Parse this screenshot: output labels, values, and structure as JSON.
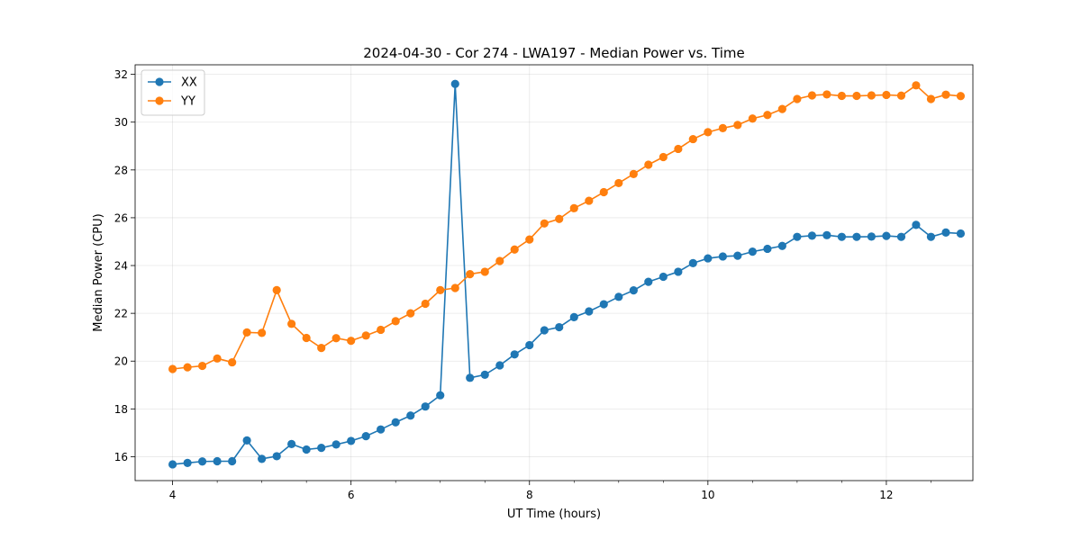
{
  "chart_data": {
    "type": "line",
    "title": "2024-04-30 - Cor 274 - LWA197 - Median Power vs. Time",
    "xlabel": "UT Time (hours)",
    "ylabel": "Median Power (CPU)",
    "xlim": [
      3.58,
      12.97
    ],
    "ylim": [
      15.0,
      32.4
    ],
    "xticks": [
      4,
      6,
      8,
      10,
      12
    ],
    "xtick_labels": [
      "4",
      "6",
      "8",
      "10",
      "12"
    ],
    "xminor_step": 0.5,
    "yticks": [
      16,
      18,
      20,
      22,
      24,
      26,
      28,
      30,
      32
    ],
    "ytick_labels": [
      "16",
      "18",
      "20",
      "22",
      "24",
      "26",
      "28",
      "30",
      "32"
    ],
    "grid": true,
    "legend": "top-left",
    "x": [
      4.0,
      4.167,
      4.333,
      4.5,
      4.667,
      4.833,
      5.0,
      5.167,
      5.333,
      5.5,
      5.667,
      5.833,
      6.0,
      6.167,
      6.333,
      6.5,
      6.667,
      6.833,
      7.0,
      7.167,
      7.333,
      7.5,
      7.667,
      7.833,
      8.0,
      8.167,
      8.333,
      8.5,
      8.667,
      8.833,
      9.0,
      9.167,
      9.333,
      9.5,
      9.667,
      9.833,
      10.0,
      10.167,
      10.333,
      10.5,
      10.667,
      10.833,
      11.0,
      11.167,
      11.333,
      11.5,
      11.667,
      11.833,
      12.0,
      12.167,
      12.333,
      12.5,
      12.667,
      12.833
    ],
    "series": [
      {
        "name": "XX",
        "color": "#1f77b4",
        "values": [
          15.68,
          15.74,
          15.8,
          15.81,
          15.81,
          16.68,
          15.91,
          16.02,
          16.53,
          16.3,
          16.37,
          16.51,
          16.66,
          16.86,
          17.14,
          17.44,
          17.72,
          18.1,
          18.57,
          31.6,
          19.3,
          19.43,
          19.82,
          20.28,
          20.67,
          21.29,
          21.42,
          21.84,
          22.08,
          22.38,
          22.69,
          22.96,
          23.32,
          23.53,
          23.74,
          24.1,
          24.3,
          24.38,
          24.41,
          24.58,
          24.7,
          24.82,
          25.2,
          25.25,
          25.27,
          25.2,
          25.2,
          25.21,
          25.24,
          25.2,
          25.7,
          25.2,
          25.38,
          25.34
        ]
      },
      {
        "name": "YY",
        "color": "#ff7f0e",
        "values": [
          19.67,
          19.74,
          19.8,
          20.11,
          19.95,
          21.2,
          21.18,
          22.97,
          21.56,
          20.97,
          20.55,
          20.96,
          20.85,
          21.07,
          21.31,
          21.67,
          22.0,
          22.4,
          22.97,
          23.06,
          23.64,
          23.74,
          24.19,
          24.67,
          25.09,
          25.76,
          25.95,
          26.4,
          26.71,
          27.07,
          27.45,
          27.83,
          28.22,
          28.54,
          28.88,
          29.29,
          29.58,
          29.75,
          29.88,
          30.15,
          30.3,
          30.55,
          30.97,
          31.12,
          31.16,
          31.1,
          31.1,
          31.12,
          31.14,
          31.11,
          31.54,
          30.97,
          31.15,
          31.09
        ]
      }
    ]
  }
}
